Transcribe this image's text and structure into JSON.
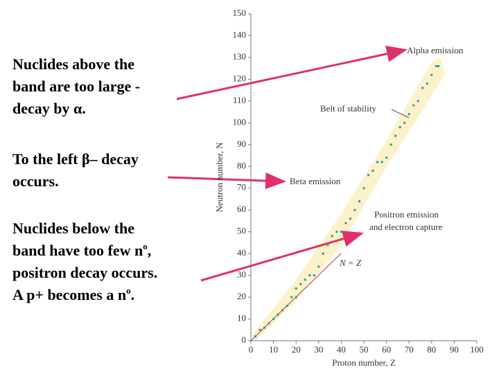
{
  "paragraphs": [
    [
      "Nuclides above the",
      "band are too large -",
      "decay by α."
    ],
    [
      "To the left β– decay",
      "occurs."
    ],
    [
      "Nuclides below the",
      "band have too few n",
      "o",
      ",",
      "positron decay occurs.",
      "A p+ becomes a n",
      "o",
      "."
    ]
  ],
  "chart_data": {
    "type": "scatter",
    "x_label": "Proton number, Z",
    "y_label": "Neutron number, N",
    "xlim": [
      0,
      100
    ],
    "ylim": [
      0,
      150
    ],
    "xticks": [
      0,
      10,
      20,
      30,
      40,
      50,
      60,
      70,
      80,
      90,
      100
    ],
    "yticks": [
      0,
      10,
      20,
      30,
      40,
      50,
      60,
      70,
      80,
      90,
      100,
      110,
      120,
      130,
      140,
      150
    ],
    "annotations": {
      "alpha": "Alpha emission",
      "belt": "Belt of stability",
      "beta": "Beta emission",
      "positron": [
        "Positron emission",
        "and electron capture"
      ],
      "nz": "N = Z"
    },
    "color": "#2a9a9a",
    "x": [
      2,
      4,
      6,
      8,
      10,
      12,
      14,
      16,
      18,
      20,
      20,
      22,
      24,
      26,
      28,
      30,
      32,
      34,
      36,
      38,
      40,
      42,
      44,
      46,
      48,
      50,
      52,
      54,
      56,
      58,
      60,
      62,
      64,
      66,
      68,
      70,
      72,
      74,
      76,
      78,
      80,
      82,
      83
    ],
    "values": [
      2,
      5,
      6,
      8,
      10,
      12,
      14,
      16,
      20,
      20,
      24,
      26,
      28,
      30,
      30,
      34,
      40,
      44,
      48,
      50,
      50,
      54,
      56,
      60,
      64,
      70,
      76,
      78,
      82,
      82,
      84,
      90,
      94,
      98,
      100,
      104,
      108,
      110,
      116,
      118,
      122,
      126,
      126
    ]
  }
}
